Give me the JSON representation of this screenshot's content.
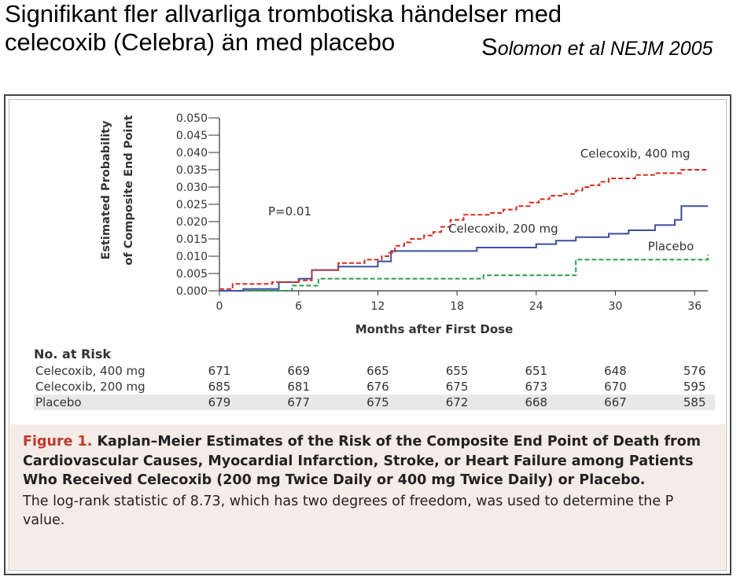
{
  "slide": {
    "title_line1": "Signifikant fler allvarliga trombotiska händelser med",
    "title_line2": "celecoxib (Celebra) än med placebo",
    "citation_first": "S",
    "citation_rest": "olomon et al NEJM 2005"
  },
  "chart_data": {
    "type": "line",
    "step": true,
    "ylabel_line1": "Estimated Probability",
    "ylabel_line2": "of Composite End Point",
    "xlabel": "Months after First Dose",
    "x_ticks": [
      0,
      6,
      12,
      18,
      24,
      30,
      36
    ],
    "y_ticks": [
      0.0,
      0.005,
      0.01,
      0.015,
      0.02,
      0.025,
      0.03,
      0.035,
      0.04,
      0.045,
      0.05
    ],
    "y_tick_labels": [
      "0.000",
      "0.005",
      "0.010",
      "0.015",
      "0.020",
      "0.025",
      "0.030",
      "0.035",
      "0.040",
      "0.045",
      "0.050"
    ],
    "xlim": [
      0,
      37
    ],
    "ylim": [
      0,
      0.05
    ],
    "annotation": "P=0.01",
    "series": [
      {
        "name": "Celecoxib, 400 mg",
        "color": "#d62d20",
        "style": "dashed",
        "x": [
          0,
          1,
          4,
          6,
          7,
          9,
          11,
          12.3,
          12.8,
          13.3,
          14,
          14.5,
          15.5,
          16.2,
          16.8,
          17.5,
          18.5,
          19.5,
          20.5,
          21.5,
          22.5,
          23.5,
          24.2,
          25,
          26,
          27,
          27.5,
          28,
          28.8,
          29.5,
          30.5,
          31.5,
          33,
          35,
          37
        ],
        "y": [
          0.0005,
          0.002,
          0.0025,
          0.003,
          0.006,
          0.008,
          0.009,
          0.01,
          0.011,
          0.013,
          0.014,
          0.015,
          0.016,
          0.017,
          0.0185,
          0.0205,
          0.022,
          0.022,
          0.0225,
          0.0235,
          0.0245,
          0.0255,
          0.0265,
          0.0275,
          0.028,
          0.029,
          0.03,
          0.0305,
          0.0315,
          0.0325,
          0.0325,
          0.0335,
          0.034,
          0.035,
          0.035
        ]
      },
      {
        "name": "Celecoxib, 200 mg",
        "color": "#3b4fa0",
        "style": "solid",
        "x": [
          0,
          1.8,
          4.5,
          6,
          7,
          9,
          12,
          13,
          18,
          19.5,
          22,
          24,
          25.5,
          27,
          29.5,
          31,
          33,
          34.5,
          35,
          37
        ],
        "y": [
          0,
          0.0005,
          0.0025,
          0.0035,
          0.006,
          0.007,
          0.0085,
          0.0115,
          0.0115,
          0.0125,
          0.0125,
          0.0135,
          0.0145,
          0.0155,
          0.0165,
          0.0175,
          0.019,
          0.0205,
          0.0245,
          0.0245
        ]
      },
      {
        "name": "Placebo",
        "color": "#2a9d4a",
        "style": "dashed",
        "x": [
          0,
          5.5,
          7.5,
          20,
          27,
          37
        ],
        "y": [
          0,
          0.0015,
          0.0035,
          0.0045,
          0.009,
          0.0105
        ]
      }
    ],
    "risk_table": {
      "heading": "No. at Risk",
      "rows": [
        {
          "label": "Celecoxib, 400 mg",
          "values": [
            "671",
            "669",
            "665",
            "655",
            "651",
            "648",
            "576"
          ]
        },
        {
          "label": "Celecoxib, 200 mg",
          "values": [
            "685",
            "681",
            "676",
            "675",
            "673",
            "670",
            "595"
          ]
        },
        {
          "label": "Placebo",
          "values": [
            "679",
            "677",
            "675",
            "672",
            "668",
            "667",
            "585"
          ]
        }
      ]
    }
  },
  "caption": {
    "label": "Figure 1.",
    "title": "Kaplan–Meier Estimates of the Risk of the Composite End Point of Death from Cardiovascular Causes, Myocardial Infarction, Stroke, or Heart Failure among Patients Who Received Celecoxib (200 mg Twice Daily or 400 mg Twice Daily) or Placebo.",
    "note": "The log-rank statistic of 8.73, which has two degrees of freedom, was used to determine the P value."
  }
}
